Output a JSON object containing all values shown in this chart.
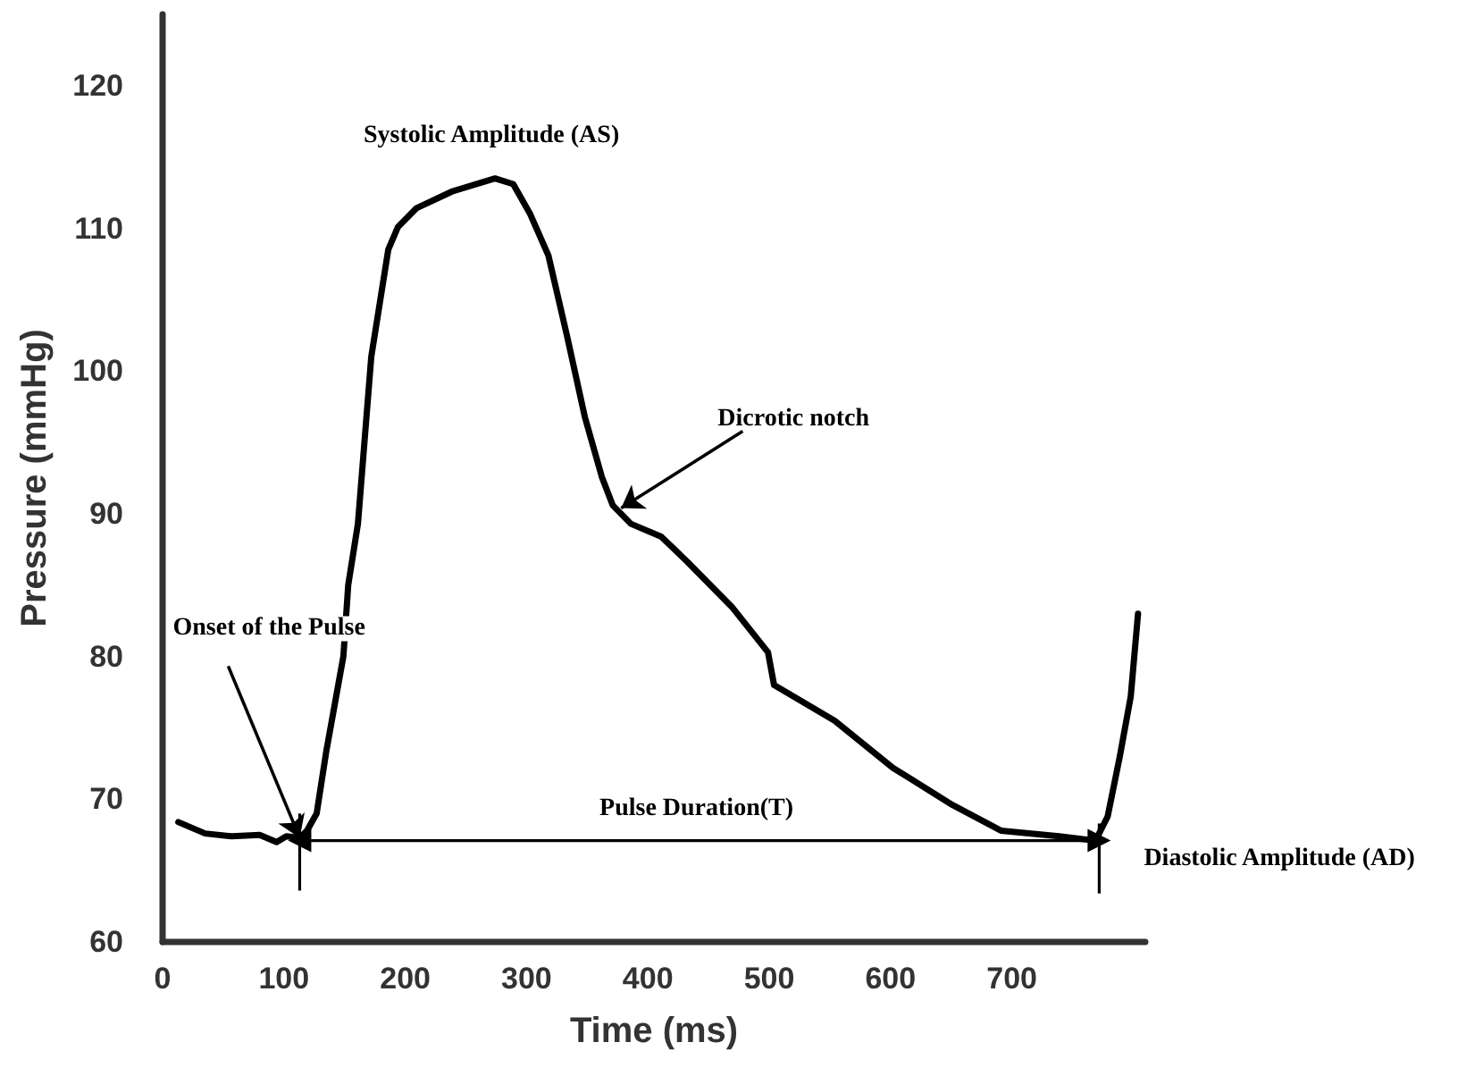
{
  "chart_data": {
    "type": "line",
    "xlabel": "Time (ms)",
    "ylabel": "Pressure (mmHg)",
    "x": [
      13,
      35,
      57,
      80,
      94,
      102,
      113,
      119,
      127,
      135,
      149,
      153,
      161,
      172,
      186,
      194,
      209,
      239,
      274,
      289,
      303,
      318,
      333,
      348,
      362,
      371,
      386,
      411,
      433,
      470,
      499,
      504,
      554,
      602,
      651,
      691,
      739,
      769,
      779,
      789,
      798,
      804
    ],
    "series": [
      {
        "color": "#000000",
        "values": [
          68.4,
          67.6,
          67.4,
          67.5,
          67.0,
          67.4,
          67.3,
          67.8,
          69.0,
          73.4,
          80.0,
          85.0,
          89.3,
          101.0,
          108.5,
          110.1,
          111.4,
          112.6,
          113.5,
          113.1,
          111.0,
          108.1,
          102.6,
          96.8,
          92.6,
          90.6,
          89.3,
          88.4,
          86.6,
          83.4,
          80.3,
          78.0,
          75.5,
          72.2,
          69.6,
          67.8,
          67.4,
          67.1,
          68.8,
          73.0,
          77.2,
          83.0
        ]
      },
      {
        "type": "line",
        "color": "#000000",
        "marker": "triangle",
        "x": [
          113,
          772
        ],
        "values": [
          67.1,
          67.1
        ],
        "errors": [
          [
            63.6,
            69.0
          ],
          [
            63.4,
            68.3
          ]
        ]
      }
    ],
    "xlim": [
      0,
      810
    ],
    "xticks": [
      0,
      100,
      200,
      300,
      400,
      500,
      600,
      700
    ],
    "ylim": [
      60,
      125
    ],
    "yticks": [
      60,
      70,
      80,
      90,
      100,
      110,
      120
    ],
    "grid": false,
    "marker": "none",
    "line_style": "solid",
    "annotations": [
      {
        "text": "Systolic Amplitude (AS)",
        "x": 274,
        "y": 113.5
      },
      {
        "text": "Dicrotic notch",
        "x": 378,
        "y": 90.4
      },
      {
        "text": "Onset of the Pulse",
        "x": 113,
        "y": 67.3
      },
      {
        "text": "Pulse Duration(T)",
        "x": 440,
        "y": 67.1
      },
      {
        "text": "Diastolic Amplitude (AD)",
        "x": 772,
        "y": 67.1
      }
    ]
  }
}
